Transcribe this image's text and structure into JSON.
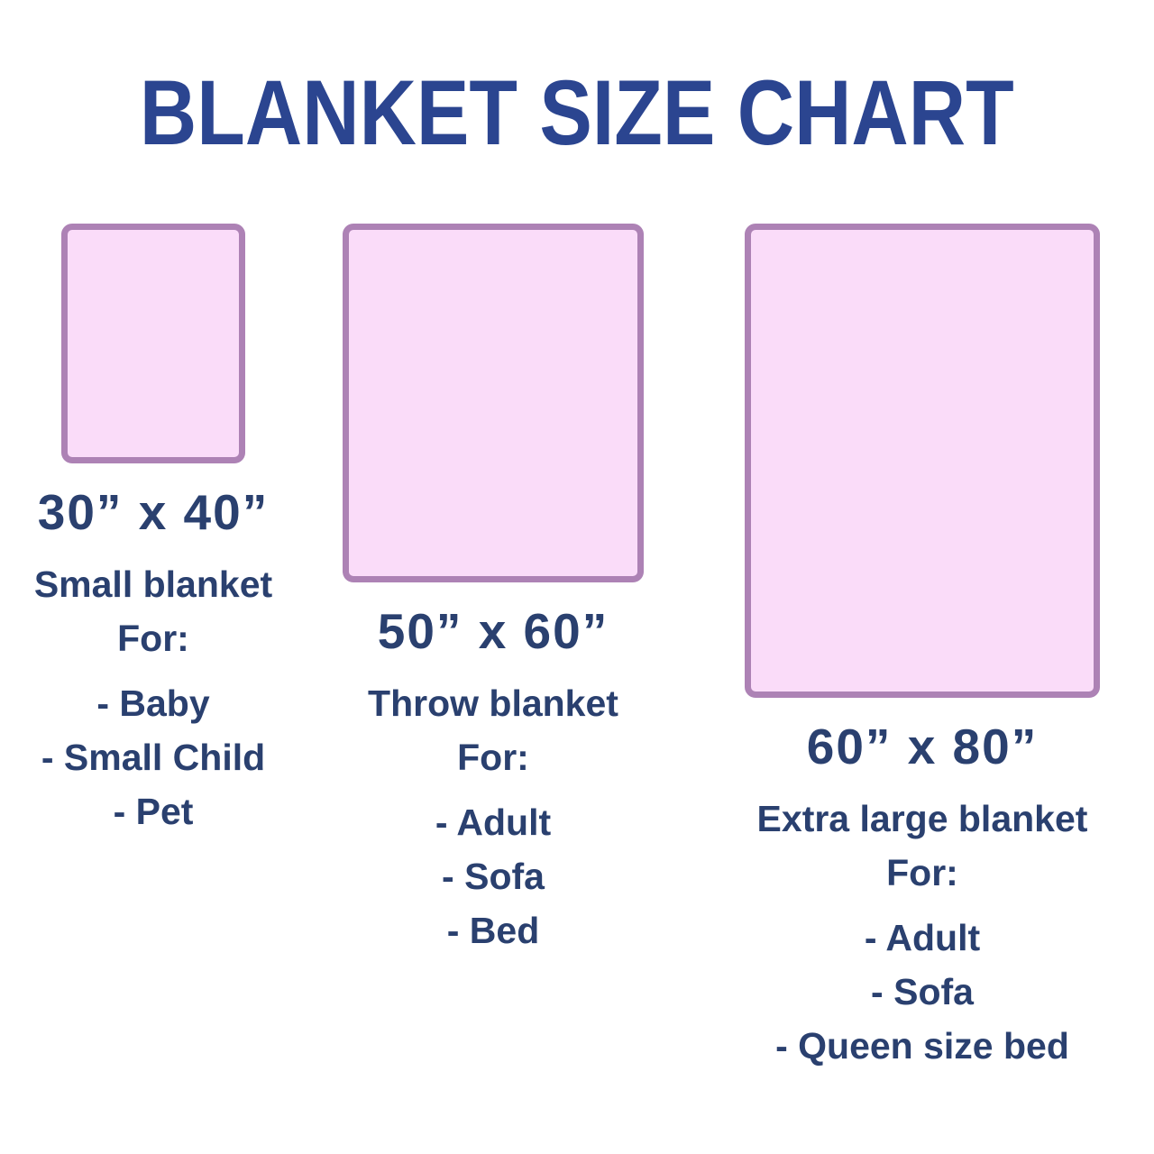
{
  "title": "BLANKET SIZE CHART",
  "colors": {
    "title_blue": "#2b4590",
    "text_navy": "#2a406f",
    "blanket_fill": "#fadcf9",
    "blanket_border": "#ad82b5",
    "page_bg": "#ffffff"
  },
  "blankets": [
    {
      "size": "30” x 40”",
      "name": "Small blanket",
      "for_label": "For:",
      "uses": [
        "- Baby",
        "- Small Child",
        "- Pet"
      ]
    },
    {
      "size": "50” x 60”",
      "name": "Throw blanket",
      "for_label": "For:",
      "uses": [
        "- Adult",
        "- Sofa",
        "- Bed"
      ]
    },
    {
      "size": "60” x 80”",
      "name": "Extra large blanket",
      "for_label": "For:",
      "uses": [
        "- Adult",
        "- Sofa",
        "- Queen size bed"
      ]
    }
  ]
}
